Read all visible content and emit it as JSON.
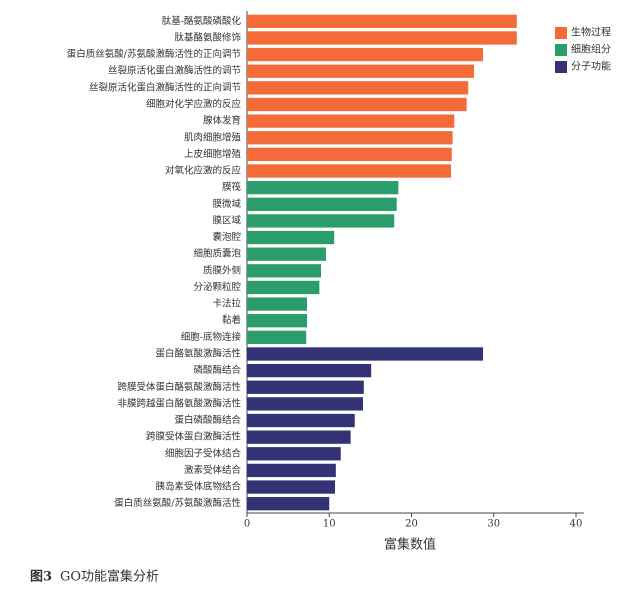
{
  "chart_data": {
    "type": "barh",
    "xlabel": "富集数值",
    "figure_label": "图3",
    "caption": "GO功能富集分析",
    "categories": [
      "肽基-酪氨酸磷酸化",
      "肽基酪氨酸修饰",
      "蛋白质丝氨酸/苏氨酸激酶活性的正向调节",
      "丝裂原活化蛋白激酶活性的调节",
      "丝裂原活化蛋白激酶活性的正向调节",
      "细胞对化学应激的反应",
      "腺体发育",
      "肌肉细胞增殖",
      "上皮细胞增殖",
      "对氧化应激的反应",
      "膜筏",
      "膜微域",
      "膜区域",
      "囊泡腔",
      "细胞质囊泡",
      "质膜外侧",
      "分泌颗粒腔",
      "卡法拉",
      "黏着",
      "细胞-底物连接",
      "蛋白酪氨酸激酶活性",
      "磷酸酶结合",
      "跨膜受体蛋白酪氨酸激酶活性",
      "非膜跨越蛋白酪氨酸激酶活性",
      "蛋白磷酸酶结合",
      "跨膜受体蛋白激酶活性",
      "细胞因子受体结合",
      "激素受体结合",
      "胰岛素受体底物结合",
      "蛋白质丝氨酸/苏氨酸激酶活性"
    ],
    "series": [
      {
        "name": "生物过程",
        "color": "#f26b38",
        "values": [
          32.8,
          32.8,
          28.7,
          27.6,
          26.9,
          26.7,
          25.2,
          25.0,
          24.9,
          24.8,
          null,
          null,
          null,
          null,
          null,
          null,
          null,
          null,
          null,
          null,
          null,
          null,
          null,
          null,
          null,
          null,
          null,
          null,
          null,
          null
        ]
      },
      {
        "name": "细胞组分",
        "color": "#2a9d6b",
        "values": [
          null,
          null,
          null,
          null,
          null,
          null,
          null,
          null,
          null,
          null,
          18.4,
          18.2,
          17.9,
          10.6,
          9.6,
          9.0,
          8.8,
          7.3,
          7.3,
          7.2,
          null,
          null,
          null,
          null,
          null,
          null,
          null,
          null,
          null,
          null
        ]
      },
      {
        "name": "分子功能",
        "color": "#323274",
        "values": [
          null,
          null,
          null,
          null,
          null,
          null,
          null,
          null,
          null,
          null,
          null,
          null,
          null,
          null,
          null,
          null,
          null,
          null,
          null,
          null,
          28.7,
          15.1,
          14.2,
          14.1,
          13.1,
          12.6,
          11.4,
          10.8,
          10.7,
          10.0
        ]
      }
    ],
    "xlim": [
      0,
      40
    ],
    "xticks": [
      0,
      10,
      20,
      30,
      40
    ],
    "grid": false,
    "legend": "upper right"
  }
}
